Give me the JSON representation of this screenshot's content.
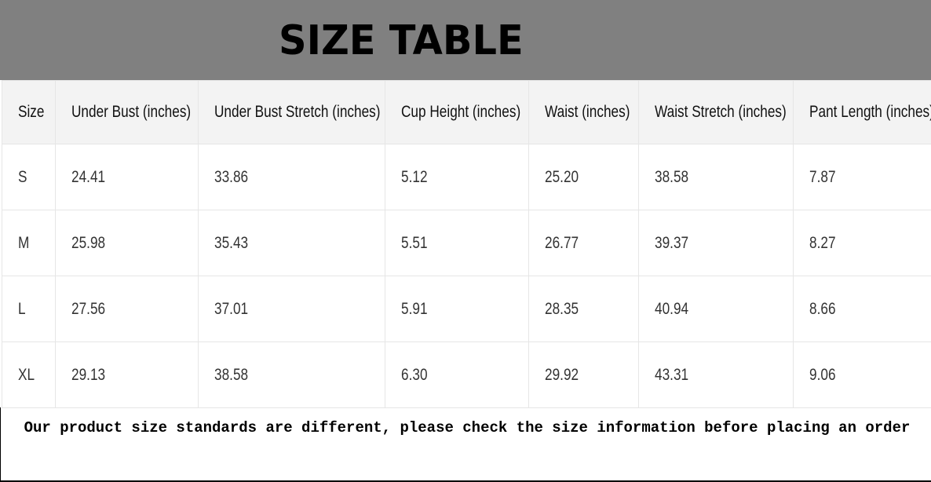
{
  "title": "SIZE TABLE",
  "table": {
    "headers": [
      "Size",
      "Under Bust (inches)",
      "Under Bust Stretch (inches)",
      "Cup Height (inches)",
      "Waist (inches)",
      "Waist Stretch (inches)",
      "Pant Length (inches)"
    ],
    "rows": [
      [
        "S",
        "24.41",
        "33.86",
        "5.12",
        "25.20",
        "38.58",
        "7.87"
      ],
      [
        "M",
        "25.98",
        "35.43",
        "5.51",
        "26.77",
        "39.37",
        "8.27"
      ],
      [
        "L",
        "27.56",
        "37.01",
        "5.91",
        "28.35",
        "40.94",
        "8.66"
      ],
      [
        "XL",
        "29.13",
        "38.58",
        "6.30",
        "29.92",
        "43.31",
        "9.06"
      ]
    ]
  },
  "note": "Our product size standards are different, please check the size information before placing an order"
}
